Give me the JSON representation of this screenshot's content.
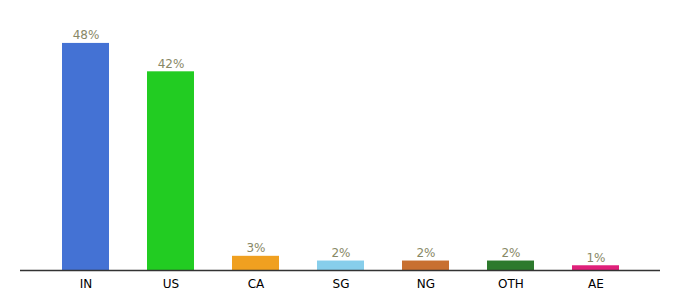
{
  "chart_data": {
    "type": "bar",
    "categories": [
      "IN",
      "US",
      "CA",
      "SG",
      "NG",
      "OTH",
      "AE"
    ],
    "values": [
      48,
      42,
      3,
      2,
      2,
      2,
      1
    ],
    "value_labels": [
      "48%",
      "42%",
      "3%",
      "2%",
      "2%",
      "2%",
      "1%"
    ],
    "colors": [
      "#4472d4",
      "#22cc22",
      "#f0a020",
      "#87ceeb",
      "#c87030",
      "#2d7a2d",
      "#e0207a"
    ],
    "ylim": [
      0,
      52
    ],
    "data_labels": true,
    "tick_labels": "x",
    "grid": false
  }
}
